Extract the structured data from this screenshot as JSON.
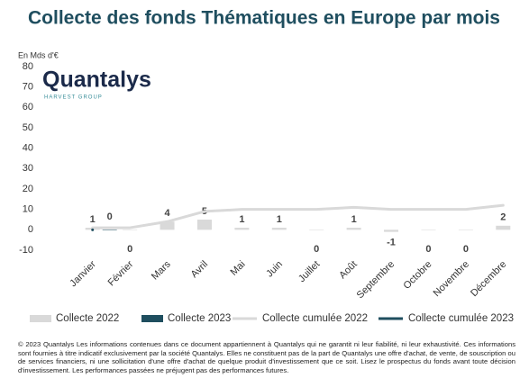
{
  "chart_data": {
    "type": "bar",
    "title": "Collecte des fonds Thématiques en Europe par mois",
    "y_label": "En Mds d'€",
    "categories": [
      "Janvier",
      "Février",
      "Mars",
      "Avril",
      "Mai",
      "Juin",
      "Juillet",
      "Août",
      "Septembre",
      "Octobre",
      "Novembre",
      "Décembre"
    ],
    "series": [
      {
        "name": "Collecte 2022",
        "kind": "bar",
        "color": "#d9d9d9",
        "values": [
          1,
          0,
          4,
          5,
          1,
          1,
          0,
          1,
          -1,
          0,
          0,
          2
        ]
      },
      {
        "name": "Collecte 2023",
        "kind": "bar",
        "color": "#1f4e5f",
        "values": [
          0,
          null,
          null,
          null,
          null,
          null,
          null,
          null,
          null,
          null,
          null,
          null
        ]
      },
      {
        "name": "Collecte cumulée 2022",
        "kind": "line",
        "color": "#d9d9d9",
        "values": [
          1,
          1,
          4,
          9,
          10,
          10,
          10,
          11,
          10,
          10,
          10,
          12
        ]
      },
      {
        "name": "Collecte cumulée 2023",
        "kind": "line",
        "color": "#1f4e5f",
        "values": [
          0,
          null,
          null,
          null,
          null,
          null,
          null,
          null,
          null,
          null,
          null,
          null
        ]
      }
    ],
    "ylim": [
      -10,
      80
    ],
    "yticks": [
      -10,
      0,
      10,
      20,
      30,
      40,
      50,
      60,
      70,
      80
    ],
    "grid": false
  },
  "logo": {
    "name": "Quantalys",
    "subtitle": "HARVEST GROUP"
  },
  "footer": "© 2023 Quantalys Les informations contenues dans ce document appartiennent à Quantalys qui ne garantit ni leur fiabilité, ni leur exhaustivité. Ces informations sont fournies à titre indicatif exclusivement par la société Quantalys. Elles ne constituent pas de la part de Quantalys une offre d'achat, de vente, de souscription ou de services financiers, ni une sollicitation d'une offre d'achat de quelque produit d'investissement que ce soit. Lisez le prospectus du fonds avant toute décision d'investissement. Les performances passées ne préjugent pas des performances futures."
}
